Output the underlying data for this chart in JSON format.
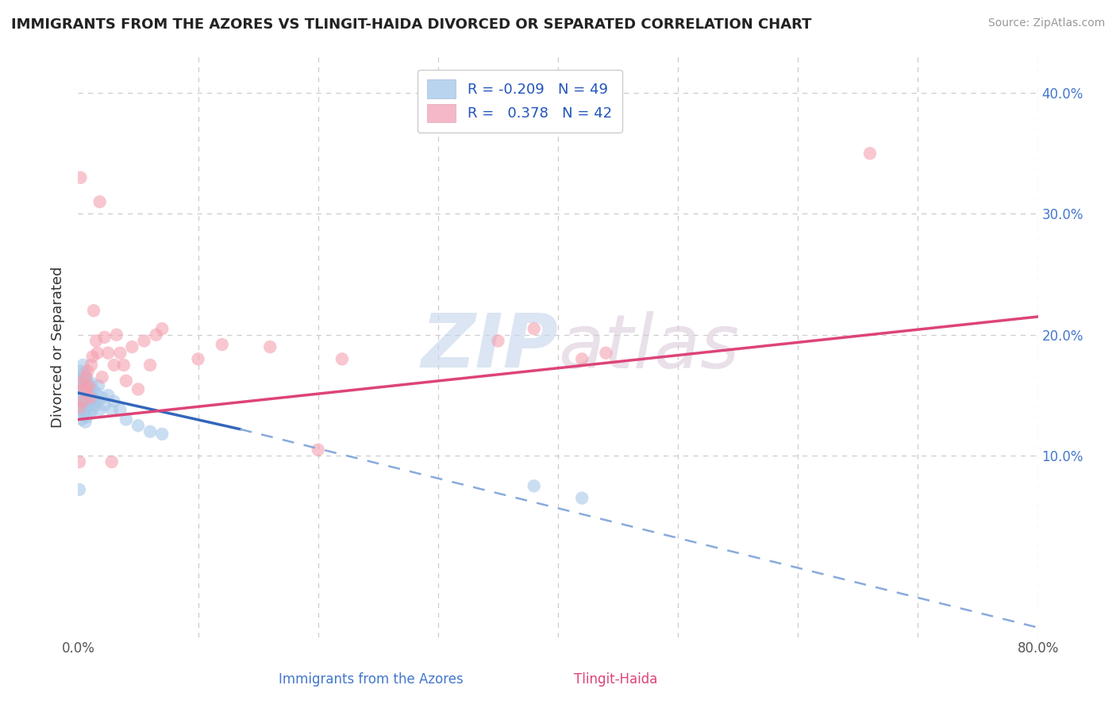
{
  "title": "IMMIGRANTS FROM THE AZORES VS TLINGIT-HAIDA DIVORCED OR SEPARATED CORRELATION CHART",
  "source": "Source: ZipAtlas.com",
  "ylabel": "Divorced or Separated",
  "xlim": [
    0.0,
    0.8
  ],
  "ylim": [
    -0.05,
    0.43
  ],
  "xtick_positions": [
    0.0,
    0.1,
    0.2,
    0.3,
    0.4,
    0.5,
    0.6,
    0.7,
    0.8
  ],
  "xticklabels": [
    "0.0%",
    "",
    "",
    "",
    "",
    "",
    "",
    "",
    "80.0%"
  ],
  "ytick_positions": [
    0.0,
    0.1,
    0.2,
    0.3,
    0.4
  ],
  "yticklabels_right": [
    "",
    "10.0%",
    "20.0%",
    "30.0%",
    "40.0%"
  ],
  "watermark_zip": "ZIP",
  "watermark_atlas": "atlas",
  "background_color": "#ffffff",
  "grid_color": "#cccccc",
  "legend_blue_label": "R = -0.209   N = 49",
  "legend_pink_label": "R =   0.378   N = 42",
  "blue_color": "#a8c8e8",
  "blue_line_color": "#3366bb",
  "blue_dash_color": "#88aadd",
  "pink_color": "#f4a0b0",
  "pink_line_color": "#dd4477",
  "blue_scatter_x": [
    0.001,
    0.001,
    0.002,
    0.002,
    0.002,
    0.003,
    0.003,
    0.003,
    0.004,
    0.004,
    0.004,
    0.005,
    0.005,
    0.005,
    0.006,
    0.006,
    0.006,
    0.007,
    0.007,
    0.007,
    0.008,
    0.008,
    0.009,
    0.009,
    0.01,
    0.01,
    0.011,
    0.011,
    0.012,
    0.012,
    0.013,
    0.014,
    0.015,
    0.016,
    0.017,
    0.018,
    0.02,
    0.022,
    0.025,
    0.028,
    0.03,
    0.035,
    0.04,
    0.05,
    0.06,
    0.07,
    0.38,
    0.42,
    0.001
  ],
  "blue_scatter_y": [
    0.145,
    0.16,
    0.138,
    0.155,
    0.17,
    0.13,
    0.148,
    0.165,
    0.14,
    0.152,
    0.175,
    0.135,
    0.15,
    0.168,
    0.128,
    0.145,
    0.162,
    0.132,
    0.148,
    0.165,
    0.14,
    0.156,
    0.142,
    0.158,
    0.135,
    0.152,
    0.145,
    0.16,
    0.138,
    0.155,
    0.148,
    0.142,
    0.152,
    0.145,
    0.158,
    0.138,
    0.148,
    0.142,
    0.15,
    0.138,
    0.145,
    0.138,
    0.13,
    0.125,
    0.12,
    0.118,
    0.075,
    0.065,
    0.072
  ],
  "pink_scatter_x": [
    0.001,
    0.002,
    0.003,
    0.004,
    0.005,
    0.006,
    0.007,
    0.008,
    0.009,
    0.01,
    0.011,
    0.012,
    0.013,
    0.015,
    0.016,
    0.018,
    0.02,
    0.022,
    0.025,
    0.028,
    0.03,
    0.032,
    0.035,
    0.038,
    0.04,
    0.045,
    0.05,
    0.055,
    0.06,
    0.065,
    0.07,
    0.1,
    0.12,
    0.16,
    0.2,
    0.22,
    0.35,
    0.38,
    0.42,
    0.44,
    0.66,
    0.001
  ],
  "pink_scatter_y": [
    0.14,
    0.33,
    0.16,
    0.145,
    0.155,
    0.165,
    0.155,
    0.17,
    0.158,
    0.148,
    0.175,
    0.182,
    0.22,
    0.195,
    0.185,
    0.31,
    0.165,
    0.198,
    0.185,
    0.095,
    0.175,
    0.2,
    0.185,
    0.175,
    0.162,
    0.19,
    0.155,
    0.195,
    0.175,
    0.2,
    0.205,
    0.18,
    0.192,
    0.19,
    0.105,
    0.18,
    0.195,
    0.205,
    0.18,
    0.185,
    0.35,
    0.095
  ],
  "blue_trend_x1": 0.0,
  "blue_trend_y1": 0.152,
  "blue_trend_x2_solid": 0.135,
  "blue_trend_y2_solid": 0.122,
  "blue_trend_x2_dash": 0.8,
  "blue_trend_y2_dash": -0.042,
  "pink_trend_x1": 0.0,
  "pink_trend_y1": 0.13,
  "pink_trend_x2": 0.8,
  "pink_trend_y2": 0.215
}
